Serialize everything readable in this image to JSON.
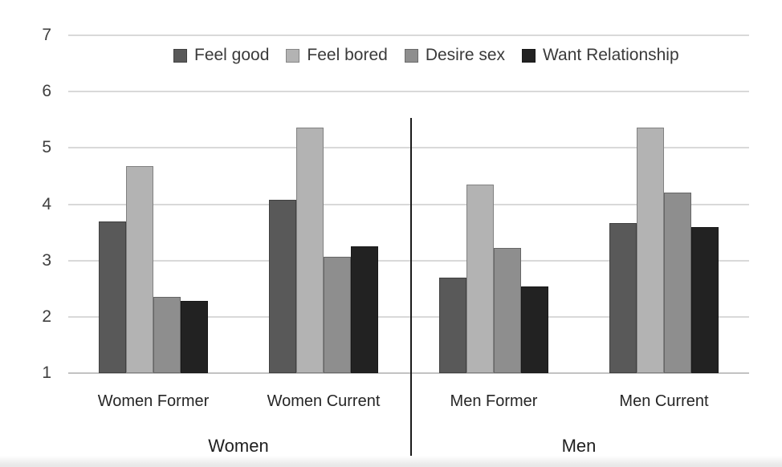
{
  "chart_data": {
    "type": "bar",
    "title": "",
    "categories": [
      "Women Former",
      "Women Current",
      "Men Former",
      "Men Current"
    ],
    "group_labels": [
      "Women",
      "Men"
    ],
    "series": [
      {
        "name": "Feel good",
        "color": "#595959",
        "values": [
          3.7,
          4.08,
          2.7,
          3.67
        ]
      },
      {
        "name": "Feel bored",
        "color": "#b3b3b3",
        "values": [
          4.68,
          5.36,
          4.35,
          5.36
        ]
      },
      {
        "name": "Desire sex",
        "color": "#8e8e8e",
        "values": [
          2.36,
          3.07,
          3.22,
          4.21
        ]
      },
      {
        "name": "Want Relationship",
        "color": "#222222",
        "values": [
          2.28,
          3.25,
          2.54,
          3.6
        ]
      }
    ],
    "y_axis": {
      "min": 1,
      "max": 7,
      "ticks": [
        1,
        2,
        3,
        4,
        5,
        6,
        7
      ]
    },
    "ylim": [
      1,
      7
    ],
    "grid": true,
    "legend_position": "top",
    "divider_between_groups": true,
    "colors": {
      "gridline": "#d9d9d9",
      "baseline": "#c3c3c3",
      "divider": "#1b1b1b",
      "tick_text": "#3f3f3f",
      "category_text": "#262626",
      "legend_text": "#3a3a3a"
    }
  }
}
